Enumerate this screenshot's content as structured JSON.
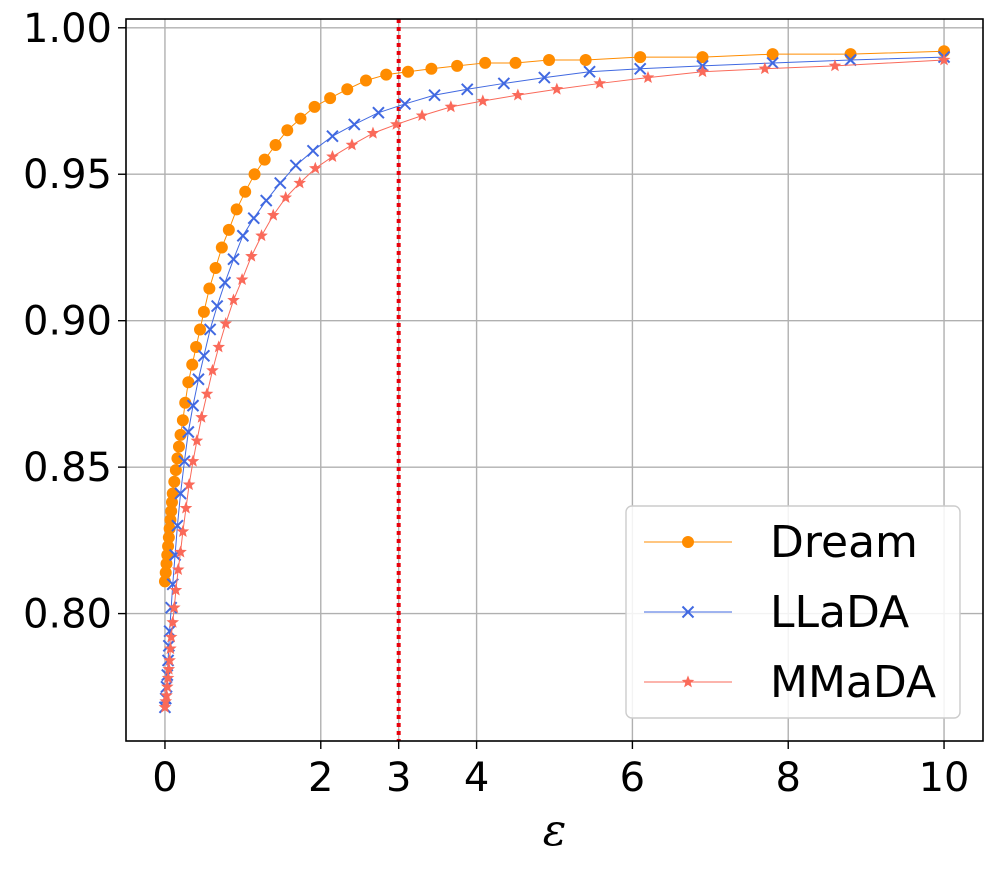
{
  "chart_data": {
    "type": "line",
    "title": "",
    "xlabel": "ε",
    "ylabel": "",
    "xlim": [
      -0.5,
      10.5
    ],
    "ylim": [
      0.7565,
      1.003
    ],
    "x_ticks": [
      0,
      2,
      3,
      4,
      6,
      8,
      10
    ],
    "x_tick_labels": [
      "0",
      "2",
      "3",
      "4",
      "6",
      "8",
      "10"
    ],
    "y_ticks": [
      0.8,
      0.85,
      0.9,
      0.95,
      1.0
    ],
    "y_tick_labels": [
      "0.80",
      "0.85",
      "0.90",
      "0.95",
      "1.00"
    ],
    "grid": true,
    "legend_position": "lower-right",
    "reference_line": {
      "orientation": "vertical",
      "x": 3,
      "color": "#e8000b",
      "style": "dotted"
    },
    "series": [
      {
        "name": "Dream",
        "color": "#ff8c00",
        "marker": "circle",
        "x": [
          0,
          0.01,
          0.02,
          0.03,
          0.04,
          0.05,
          0.06,
          0.07,
          0.08,
          0.09,
          0.1,
          0.12,
          0.14,
          0.16,
          0.18,
          0.2,
          0.23,
          0.26,
          0.3,
          0.35,
          0.4,
          0.45,
          0.5,
          0.57,
          0.65,
          0.73,
          0.82,
          0.92,
          1.03,
          1.15,
          1.28,
          1.42,
          1.57,
          1.74,
          1.92,
          2.12,
          2.34,
          2.58,
          2.84,
          3.12,
          3.42,
          3.75,
          4.11,
          4.5,
          4.93,
          5.4,
          6.1,
          6.9,
          7.8,
          8.8,
          10
        ],
        "values": [
          0.811,
          0.814,
          0.817,
          0.82,
          0.823,
          0.826,
          0.829,
          0.832,
          0.835,
          0.838,
          0.841,
          0.845,
          0.849,
          0.853,
          0.857,
          0.861,
          0.866,
          0.872,
          0.879,
          0.885,
          0.891,
          0.897,
          0.903,
          0.911,
          0.918,
          0.925,
          0.931,
          0.938,
          0.944,
          0.95,
          0.955,
          0.96,
          0.965,
          0.969,
          0.973,
          0.976,
          0.979,
          0.982,
          0.984,
          0.985,
          0.986,
          0.987,
          0.988,
          0.988,
          0.989,
          0.989,
          0.99,
          0.99,
          0.991,
          0.991,
          0.992
        ]
      },
      {
        "name": "LLaDA",
        "color": "#4169e1",
        "marker": "x",
        "x": [
          0,
          0.01,
          0.02,
          0.03,
          0.04,
          0.05,
          0.06,
          0.08,
          0.1,
          0.13,
          0.16,
          0.2,
          0.25,
          0.3,
          0.36,
          0.43,
          0.5,
          0.58,
          0.67,
          0.77,
          0.88,
          1.0,
          1.14,
          1.3,
          1.48,
          1.68,
          1.9,
          2.15,
          2.43,
          2.74,
          3.08,
          3.46,
          3.88,
          4.35,
          4.87,
          5.45,
          6.1,
          6.9,
          7.8,
          8.8,
          10
        ],
        "values": [
          0.768,
          0.771,
          0.775,
          0.779,
          0.784,
          0.789,
          0.794,
          0.802,
          0.81,
          0.82,
          0.83,
          0.841,
          0.852,
          0.862,
          0.871,
          0.88,
          0.888,
          0.897,
          0.905,
          0.913,
          0.921,
          0.929,
          0.935,
          0.941,
          0.947,
          0.953,
          0.958,
          0.963,
          0.967,
          0.971,
          0.974,
          0.977,
          0.979,
          0.981,
          0.983,
          0.985,
          0.986,
          0.987,
          0.988,
          0.989,
          0.99
        ]
      },
      {
        "name": "MMaDA",
        "color": "#fa6a5a",
        "marker": "star",
        "x": [
          0,
          0.01,
          0.02,
          0.03,
          0.04,
          0.05,
          0.06,
          0.07,
          0.08,
          0.1,
          0.12,
          0.14,
          0.17,
          0.2,
          0.23,
          0.27,
          0.31,
          0.36,
          0.41,
          0.47,
          0.54,
          0.61,
          0.69,
          0.78,
          0.88,
          0.99,
          1.11,
          1.24,
          1.39,
          1.55,
          1.73,
          1.93,
          2.15,
          2.4,
          2.67,
          2.97,
          3.3,
          3.67,
          4.08,
          4.53,
          5.03,
          5.58,
          6.2,
          6.9,
          7.7,
          8.6,
          10
        ],
        "values": [
          0.768,
          0.77,
          0.772,
          0.775,
          0.778,
          0.781,
          0.784,
          0.788,
          0.792,
          0.797,
          0.802,
          0.808,
          0.815,
          0.821,
          0.828,
          0.836,
          0.844,
          0.852,
          0.859,
          0.867,
          0.875,
          0.883,
          0.891,
          0.899,
          0.907,
          0.914,
          0.922,
          0.929,
          0.936,
          0.942,
          0.947,
          0.952,
          0.956,
          0.96,
          0.964,
          0.967,
          0.97,
          0.973,
          0.975,
          0.977,
          0.979,
          0.981,
          0.983,
          0.985,
          0.986,
          0.987,
          0.989
        ]
      }
    ]
  }
}
